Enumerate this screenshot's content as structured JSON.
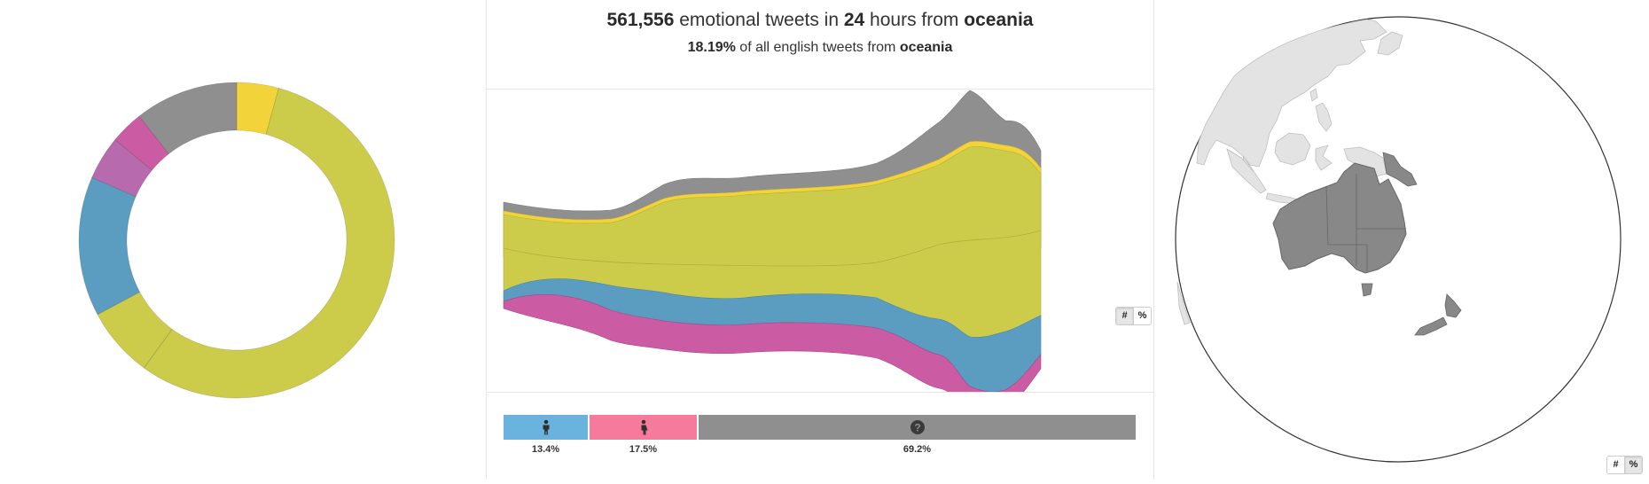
{
  "header": {
    "tweet_count": "561,556",
    "text_emotional_tweets_in": " emotional tweets in ",
    "hours": "24",
    "text_hours_from": " hours from ",
    "region": "oceania",
    "percent": "18.19%",
    "text_of_all_english": " of all english tweets from ",
    "region2": "oceania"
  },
  "colors": {
    "yellow": "#f2d43a",
    "olive": "#cccc4a",
    "blue": "#5b9cc1",
    "magenta": "#cb5ca3",
    "purple": "#b76aae",
    "gray": "#8f8f8f",
    "male": "#6ab3df",
    "female": "#f57a9c",
    "unknown": "#8f8f8f"
  },
  "donut": {
    "segments": [
      {
        "name": "yellow",
        "value": 4.3
      },
      {
        "name": "olive-large",
        "value": 55.7
      },
      {
        "name": "olive-small",
        "value": 7.2
      },
      {
        "name": "blue",
        "value": 14.3
      },
      {
        "name": "purple",
        "value": 4.5
      },
      {
        "name": "magenta",
        "value": 3.4
      },
      {
        "name": "gray",
        "value": 10.6
      }
    ]
  },
  "stream_toggle": {
    "count_label": "#",
    "percent_label": "%",
    "active": "count"
  },
  "map_toggle": {
    "count_label": "#",
    "percent_label": "%",
    "active": "percent"
  },
  "gender": {
    "male": {
      "label": "13.4%",
      "icon": "male-icon",
      "value": 13.4
    },
    "female": {
      "label": "17.5%",
      "icon": "female-icon",
      "value": 17.5
    },
    "unknown": {
      "label": "69.2%",
      "icon": "question-icon",
      "value": 69.2
    }
  }
}
